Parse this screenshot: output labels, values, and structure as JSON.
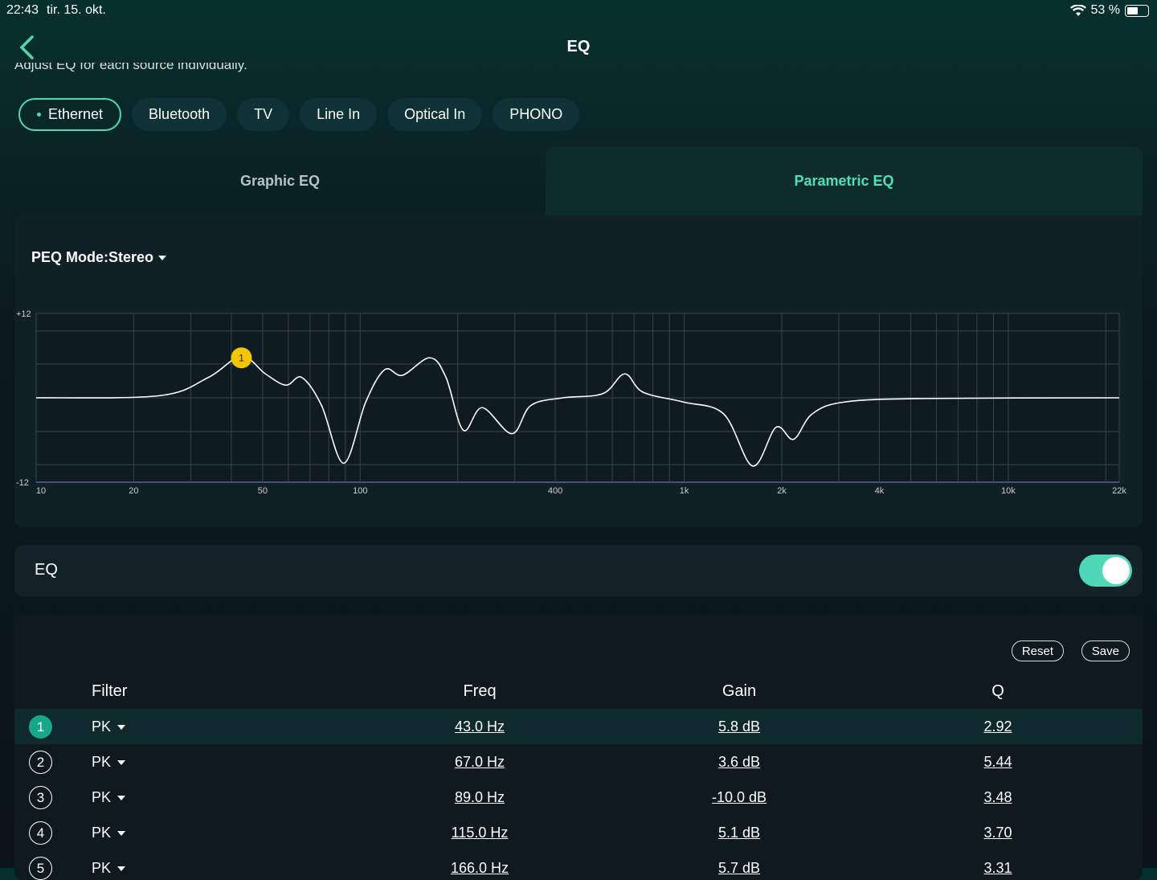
{
  "status": {
    "time": "22:43",
    "date": "tir. 15. okt.",
    "battery": "53 %",
    "battery_level": 53
  },
  "header": {
    "title": "EQ",
    "subtitle": "Adjust EQ for each source individually."
  },
  "sources": [
    {
      "label": "Ethernet",
      "active": true
    },
    {
      "label": "Bluetooth"
    },
    {
      "label": "TV"
    },
    {
      "label": "Line In"
    },
    {
      "label": "Optical In"
    },
    {
      "label": "PHONO"
    }
  ],
  "tabs": {
    "graphic": "Graphic EQ",
    "parametric": "Parametric EQ"
  },
  "peq_mode": "PEQ Mode:Stereo",
  "chart_data": {
    "type": "line",
    "xscale": "log",
    "xlim": [
      10,
      22000
    ],
    "ylim": [
      -12,
      12
    ],
    "y_ticks": [
      "+12",
      "-12"
    ],
    "x_ticks": [
      {
        "v": 10,
        "l": "10"
      },
      {
        "v": 20,
        "l": "20"
      },
      {
        "v": 50,
        "l": "50"
      },
      {
        "v": 100,
        "l": "100"
      },
      {
        "v": 400,
        "l": "400"
      },
      {
        "v": 1000,
        "l": "1k"
      },
      {
        "v": 2000,
        "l": "2k"
      },
      {
        "v": 4000,
        "l": "4k"
      },
      {
        "v": 10000,
        "l": "10k"
      },
      {
        "v": 22000,
        "l": "22k"
      }
    ],
    "curve": [
      [
        10,
        0
      ],
      [
        24,
        0.3
      ],
      [
        34,
        2.9
      ],
      [
        43,
        5.9
      ],
      [
        51,
        3.4
      ],
      [
        59,
        1.8
      ],
      [
        66,
        2.9
      ],
      [
        76,
        -1.1
      ],
      [
        89,
        -9.3
      ],
      [
        104,
        -0.6
      ],
      [
        119,
        4
      ],
      [
        135,
        3.2
      ],
      [
        164,
        5.7
      ],
      [
        184,
        2.9
      ],
      [
        208,
        -4.6
      ],
      [
        238,
        -1.4
      ],
      [
        294,
        -5.1
      ],
      [
        336,
        -1.1
      ],
      [
        422,
        0
      ],
      [
        561,
        0.6
      ],
      [
        655,
        3.4
      ],
      [
        746,
        0.8
      ],
      [
        995,
        -0.6
      ],
      [
        1324,
        -2.3
      ],
      [
        1626,
        -9.7
      ],
      [
        1919,
        -4.2
      ],
      [
        2175,
        -5.9
      ],
      [
        2481,
        -2.3
      ],
      [
        3119,
        -0.6
      ],
      [
        5520,
        -0.1
      ],
      [
        22000,
        0
      ]
    ],
    "marker": {
      "label": "1",
      "freq": 43,
      "gain": 5.8,
      "color": "#f5c400"
    }
  },
  "eq": {
    "label": "EQ",
    "enabled": true
  },
  "table": {
    "reset": "Reset",
    "save": "Save",
    "headers": {
      "filter": "Filter",
      "freq": "Freq",
      "gain": "Gain",
      "q": "Q"
    },
    "rows": [
      {
        "n": "1",
        "type": "PK",
        "freq": "43.0 Hz",
        "gain": "5.8 dB",
        "q": "2.92"
      },
      {
        "n": "2",
        "type": "PK",
        "freq": "67.0 Hz",
        "gain": "3.6 dB",
        "q": "5.44"
      },
      {
        "n": "3",
        "type": "PK",
        "freq": "89.0 Hz",
        "gain": "-10.0 dB",
        "q": "3.48"
      },
      {
        "n": "4",
        "type": "PK",
        "freq": "115.0 Hz",
        "gain": "5.1 dB",
        "q": "3.70"
      },
      {
        "n": "5",
        "type": "PK",
        "freq": "166.0 Hz",
        "gain": "5.7 dB",
        "q": "3.31"
      }
    ]
  }
}
